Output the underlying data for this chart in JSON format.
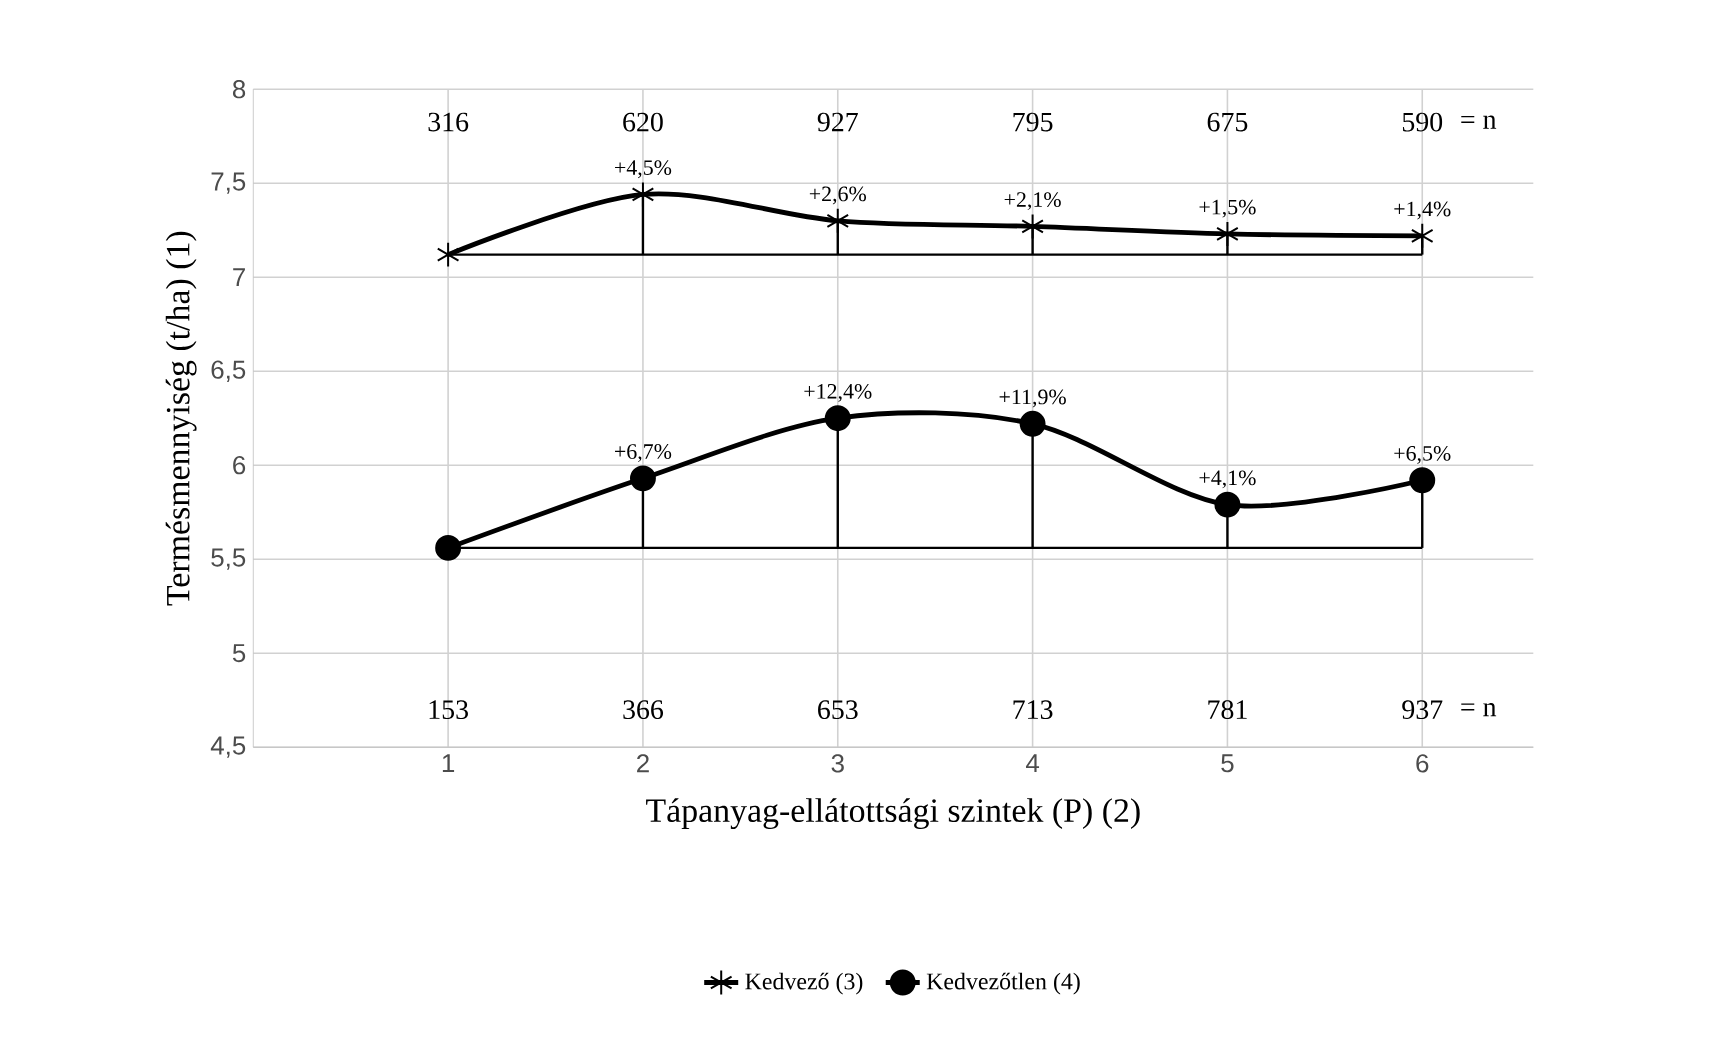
{
  "chart_data": {
    "type": "line",
    "xlabel": "Tápanyag-ellátottsági szintek (P) (2)",
    "ylabel": "Termésmennyiség (t/ha) (1)",
    "categories": [
      "1",
      "2",
      "3",
      "4",
      "5",
      "6"
    ],
    "series": [
      {
        "name": "Kedvező (3)",
        "color": "#000000",
        "marker": "cross",
        "values": [
          7.12,
          7.44,
          7.3,
          7.27,
          7.23,
          7.22
        ]
      },
      {
        "name": "Kedvezőtlen (4)",
        "color": "#000000",
        "marker": "circle",
        "values": [
          5.56,
          5.93,
          6.25,
          6.22,
          5.79,
          5.92
        ]
      }
    ],
    "ref_lines": [
      {
        "axis": "y",
        "value": 7.12
      },
      {
        "axis": "y",
        "value": 5.56
      }
    ],
    "ylim": [
      4.5,
      8
    ],
    "yticks": [
      {
        "value": 4.5,
        "label": "4,5"
      },
      5,
      {
        "value": 5.5,
        "label": "5,5"
      },
      6,
      {
        "value": 6.5,
        "label": "6,5"
      },
      7,
      {
        "value": 7.5,
        "label": "7,5"
      },
      8
    ],
    "grid": true,
    "legend": "bottom",
    "annotations": [
      "316",
      "620",
      "927",
      "795",
      "675",
      "590",
      "= n",
      "153",
      "366",
      "653",
      "713",
      "781",
      "937",
      "= n",
      {
        "text": "+4,5%",
        "x": "2",
        "y": 7.44
      },
      {
        "text": "+2,6%",
        "x": "3",
        "y": 7.3
      },
      {
        "text": "+2,1%",
        "x": "4",
        "y": 7.27
      },
      {
        "text": "+1,5%",
        "x": "5",
        "y": 7.23
      },
      {
        "text": "+1,4%",
        "x": "6",
        "y": 7.22
      },
      {
        "text": "+6,7%",
        "x": "2",
        "y": 5.93
      },
      {
        "text": "+12,4%",
        "x": "3",
        "y": 6.25
      },
      {
        "text": "+11,9%",
        "x": "4",
        "y": 6.22
      },
      {
        "text": "+4,1%",
        "x": "5",
        "y": 5.79
      },
      {
        "text": "+6,5%",
        "x": "6",
        "y": 5.92
      }
    ]
  }
}
